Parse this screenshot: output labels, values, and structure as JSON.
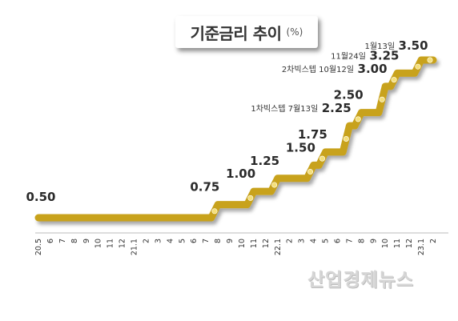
{
  "chart_data": {
    "type": "line",
    "title": "기준금리 추이",
    "unit": "(%)",
    "categories": [
      "20.5",
      "6",
      "7",
      "8",
      "9",
      "10",
      "11",
      "12",
      "21.1",
      "2",
      "3",
      "4",
      "5",
      "6",
      "7",
      "8",
      "9",
      "10",
      "11",
      "12",
      "22.1",
      "2",
      "3",
      "4",
      "5",
      "6",
      "7",
      "8",
      "9",
      "10",
      "11",
      "12",
      "23.1",
      "2"
    ],
    "values": [
      0.5,
      0.5,
      0.5,
      0.5,
      0.5,
      0.5,
      0.5,
      0.5,
      0.5,
      0.5,
      0.5,
      0.5,
      0.5,
      0.5,
      0.5,
      0.75,
      0.75,
      0.75,
      1.0,
      1.0,
      1.25,
      1.25,
      1.25,
      1.5,
      1.75,
      1.75,
      2.25,
      2.5,
      2.5,
      3.0,
      3.25,
      3.25,
      3.5,
      3.5
    ],
    "labels": [
      {
        "i": 0,
        "text": "0.50"
      },
      {
        "i": 15,
        "text": "0.75"
      },
      {
        "i": 18,
        "text": "1.00"
      },
      {
        "i": 20,
        "text": "1.25"
      },
      {
        "i": 23,
        "text": "1.50"
      },
      {
        "i": 24,
        "text": "1.75"
      },
      {
        "i": 26,
        "text": "2.25",
        "note": "1차빅스텝 7월13일"
      },
      {
        "i": 27,
        "text": "2.50"
      },
      {
        "i": 29,
        "text": "3.00",
        "note": "2차빅스텝 10월12일"
      },
      {
        "i": 30,
        "text": "3.25",
        "note": "11월24일"
      },
      {
        "i": 32,
        "text": "3.50",
        "note": "1월13일"
      }
    ],
    "line_color": "#c8a21a",
    "marker_color": "#f5e07a"
  },
  "watermark": "산업경제뉴스"
}
